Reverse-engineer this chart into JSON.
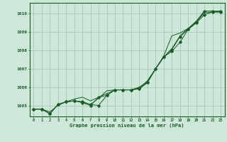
{
  "xlabel": "Graphe pression niveau de la mer (hPa)",
  "background_color": "#cde8d8",
  "grid_color": "#9dc4b0",
  "line_color": "#1a5c28",
  "xlim": [
    -0.5,
    23.5
  ],
  "ylim": [
    1004.4,
    1010.6
  ],
  "yticks": [
    1005,
    1006,
    1007,
    1008,
    1009,
    1010
  ],
  "xticks": [
    0,
    1,
    2,
    3,
    4,
    5,
    6,
    7,
    8,
    9,
    10,
    11,
    12,
    13,
    14,
    15,
    16,
    17,
    18,
    19,
    20,
    21,
    22,
    23
  ],
  "series1": [
    1004.8,
    1004.8,
    1004.55,
    1005.05,
    1005.2,
    1005.25,
    1005.2,
    1005.05,
    1005.0,
    1005.55,
    1005.85,
    1005.85,
    1005.85,
    1005.9,
    1006.25,
    1007.0,
    1007.65,
    1008.05,
    1008.75,
    1009.15,
    1009.55,
    1010.15,
    1010.15,
    1010.15
  ],
  "series2": [
    1004.8,
    1004.8,
    1004.55,
    1005.05,
    1005.2,
    1005.35,
    1005.45,
    1005.25,
    1005.45,
    1005.65,
    1005.85,
    1005.85,
    1005.85,
    1005.95,
    1006.35,
    1007.0,
    1007.65,
    1008.1,
    1008.8,
    1009.2,
    1009.6,
    1010.15,
    1010.15,
    1010.15
  ],
  "series3": [
    1004.8,
    1004.8,
    1004.55,
    1005.05,
    1005.2,
    1005.25,
    1005.15,
    1005.0,
    1005.45,
    1005.55,
    1005.85,
    1005.85,
    1005.85,
    1005.95,
    1006.25,
    1007.0,
    1007.65,
    1007.95,
    1008.45,
    1009.15,
    1009.5,
    1009.95,
    1010.1,
    1010.1
  ],
  "series4": [
    1004.8,
    1004.8,
    1004.65,
    1005.0,
    1005.2,
    1005.25,
    1005.2,
    1005.05,
    1005.4,
    1005.8,
    1005.85,
    1005.85,
    1005.85,
    1006.0,
    1006.3,
    1007.0,
    1007.7,
    1008.8,
    1008.95,
    1009.2,
    1009.55,
    1010.05,
    1010.1,
    1010.1
  ]
}
